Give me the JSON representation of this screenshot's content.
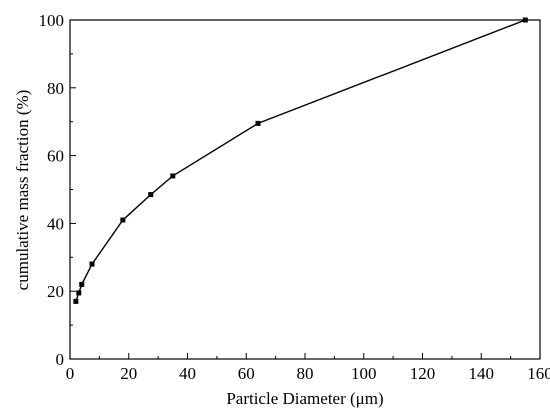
{
  "chart_data": {
    "type": "line",
    "title": "",
    "xlabel": "Particle Diameter (μm)",
    "ylabel": "cumulative mass fraction (%)",
    "xlim": [
      0,
      160
    ],
    "ylim": [
      0,
      100
    ],
    "x_ticks": [
      0,
      20,
      40,
      60,
      80,
      100,
      120,
      140,
      160
    ],
    "y_ticks": [
      0,
      20,
      40,
      60,
      80,
      100
    ],
    "grid": false,
    "legend": "none",
    "series": [
      {
        "color": "#000000",
        "marker": "square",
        "x": [
          2,
          3,
          4,
          7.5,
          18,
          27.5,
          35,
          64,
          155
        ],
        "y": [
          17,
          19.5,
          22,
          28,
          41,
          48.5,
          54,
          69.5,
          100
        ]
      }
    ]
  }
}
